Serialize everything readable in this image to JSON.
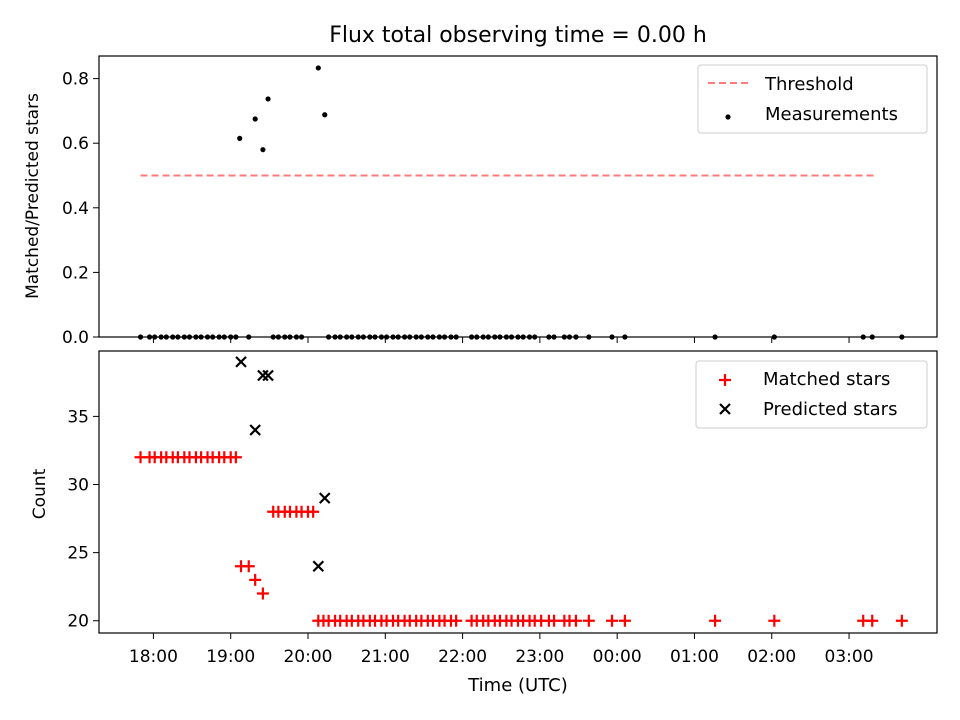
{
  "title": "Flux total observing time = 0.00 h",
  "xlabel": "Time (UTC)",
  "x_ticks": [
    "18:00",
    "19:00",
    "20:00",
    "21:00",
    "22:00",
    "23:00",
    "00:00",
    "01:00",
    "02:00",
    "03:00"
  ],
  "chart_data": [
    {
      "type": "scatter",
      "ylabel": "Matched/Predicted stars",
      "ylim": [
        0,
        0.87
      ],
      "y_ticks": [
        "0.0",
        "0.2",
        "0.4",
        "0.6",
        "0.8"
      ],
      "legend_position": "top-right",
      "threshold": {
        "name": "Threshold",
        "value": 0.5,
        "x_range": [
          "17:50",
          "27:20"
        ],
        "color": "#ff7a7a"
      },
      "series": [
        {
          "name": "Measurements",
          "color": "#000000",
          "points": [
            {
              "x": "19:07",
              "y": 0.615
            },
            {
              "x": "19:19",
              "y": 0.675
            },
            {
              "x": "19:25",
              "y": 0.58
            },
            {
              "x": "19:29",
              "y": 0.737
            },
            {
              "x": "20:08",
              "y": 0.833
            },
            {
              "x": "20:13",
              "y": 0.688
            }
          ],
          "zero_times": [
            "17:50",
            "17:57",
            "18:01",
            "18:06",
            "18:10",
            "18:15",
            "18:19",
            "18:24",
            "18:28",
            "18:33",
            "18:37",
            "18:42",
            "18:46",
            "18:51",
            "18:55",
            "19:00",
            "19:04",
            "19:14",
            "19:33",
            "19:37",
            "19:42",
            "19:46",
            "19:51",
            "19:55",
            "20:16",
            "20:21",
            "20:25",
            "20:30",
            "20:34",
            "20:39",
            "20:43",
            "20:48",
            "20:52",
            "20:57",
            "21:01",
            "21:06",
            "21:10",
            "21:15",
            "21:19",
            "21:24",
            "21:28",
            "21:33",
            "21:37",
            "21:42",
            "21:46",
            "21:51",
            "21:55",
            "22:07",
            "22:11",
            "22:16",
            "22:20",
            "22:25",
            "22:29",
            "22:34",
            "22:38",
            "22:43",
            "22:47",
            "22:52",
            "22:56",
            "23:07",
            "23:11",
            "23:19",
            "23:23",
            "23:28",
            "23:38",
            "23:56",
            "00:06",
            "01:16",
            "02:02",
            "03:11",
            "03:18",
            "03:41"
          ]
        }
      ]
    },
    {
      "type": "scatter",
      "ylabel": "Count",
      "ylim": [
        19.1,
        39.8
      ],
      "y_ticks": [
        "20",
        "25",
        "30",
        "35"
      ],
      "legend_position": "top-right",
      "series": [
        {
          "name": "Matched stars",
          "marker": "+",
          "color": "#ff0000",
          "points": [
            {
              "x": "17:50",
              "y": 32
            },
            {
              "x": "17:57",
              "y": 32
            },
            {
              "x": "18:01",
              "y": 32
            },
            {
              "x": "18:06",
              "y": 32
            },
            {
              "x": "18:10",
              "y": 32
            },
            {
              "x": "18:15",
              "y": 32
            },
            {
              "x": "18:19",
              "y": 32
            },
            {
              "x": "18:24",
              "y": 32
            },
            {
              "x": "18:28",
              "y": 32
            },
            {
              "x": "18:33",
              "y": 32
            },
            {
              "x": "18:37",
              "y": 32
            },
            {
              "x": "18:42",
              "y": 32
            },
            {
              "x": "18:46",
              "y": 32
            },
            {
              "x": "18:51",
              "y": 32
            },
            {
              "x": "18:55",
              "y": 32
            },
            {
              "x": "19:00",
              "y": 32
            },
            {
              "x": "19:04",
              "y": 32
            },
            {
              "x": "19:08",
              "y": 24
            },
            {
              "x": "19:14",
              "y": 24
            },
            {
              "x": "19:19",
              "y": 23
            },
            {
              "x": "19:25",
              "y": 22
            },
            {
              "x": "19:33",
              "y": 28
            },
            {
              "x": "19:37",
              "y": 28
            },
            {
              "x": "19:42",
              "y": 28
            },
            {
              "x": "19:46",
              "y": 28
            },
            {
              "x": "19:51",
              "y": 28
            },
            {
              "x": "19:55",
              "y": 28
            },
            {
              "x": "20:00",
              "y": 28
            },
            {
              "x": "20:04",
              "y": 28
            },
            {
              "x": "20:08",
              "y": 20
            },
            {
              "x": "20:12",
              "y": 20
            },
            {
              "x": "20:16",
              "y": 20
            },
            {
              "x": "20:21",
              "y": 20
            },
            {
              "x": "20:25",
              "y": 20
            },
            {
              "x": "20:30",
              "y": 20
            },
            {
              "x": "20:34",
              "y": 20
            },
            {
              "x": "20:39",
              "y": 20
            },
            {
              "x": "20:43",
              "y": 20
            },
            {
              "x": "20:48",
              "y": 20
            },
            {
              "x": "20:52",
              "y": 20
            },
            {
              "x": "20:57",
              "y": 20
            },
            {
              "x": "21:01",
              "y": 20
            },
            {
              "x": "21:06",
              "y": 20
            },
            {
              "x": "21:10",
              "y": 20
            },
            {
              "x": "21:15",
              "y": 20
            },
            {
              "x": "21:19",
              "y": 20
            },
            {
              "x": "21:24",
              "y": 20
            },
            {
              "x": "21:28",
              "y": 20
            },
            {
              "x": "21:33",
              "y": 20
            },
            {
              "x": "21:37",
              "y": 20
            },
            {
              "x": "21:42",
              "y": 20
            },
            {
              "x": "21:46",
              "y": 20
            },
            {
              "x": "21:51",
              "y": 20
            },
            {
              "x": "21:55",
              "y": 20
            },
            {
              "x": "22:07",
              "y": 20
            },
            {
              "x": "22:11",
              "y": 20
            },
            {
              "x": "22:16",
              "y": 20
            },
            {
              "x": "22:20",
              "y": 20
            },
            {
              "x": "22:25",
              "y": 20
            },
            {
              "x": "22:29",
              "y": 20
            },
            {
              "x": "22:34",
              "y": 20
            },
            {
              "x": "22:38",
              "y": 20
            },
            {
              "x": "22:43",
              "y": 20
            },
            {
              "x": "22:47",
              "y": 20
            },
            {
              "x": "22:52",
              "y": 20
            },
            {
              "x": "22:56",
              "y": 20
            },
            {
              "x": "23:01",
              "y": 20
            },
            {
              "x": "23:07",
              "y": 20
            },
            {
              "x": "23:11",
              "y": 20
            },
            {
              "x": "23:19",
              "y": 20
            },
            {
              "x": "23:23",
              "y": 20
            },
            {
              "x": "23:28",
              "y": 20
            },
            {
              "x": "23:38",
              "y": 20
            },
            {
              "x": "23:56",
              "y": 20
            },
            {
              "x": "00:06",
              "y": 20
            },
            {
              "x": "01:16",
              "y": 20
            },
            {
              "x": "02:02",
              "y": 20
            },
            {
              "x": "03:11",
              "y": 20
            },
            {
              "x": "03:18",
              "y": 20
            },
            {
              "x": "03:41",
              "y": 20
            }
          ]
        },
        {
          "name": "Predicted stars",
          "marker": "x",
          "color": "#000000",
          "points": [
            {
              "x": "19:08",
              "y": 39
            },
            {
              "x": "19:19",
              "y": 34
            },
            {
              "x": "19:25",
              "y": 38
            },
            {
              "x": "19:29",
              "y": 38
            },
            {
              "x": "20:08",
              "y": 24
            },
            {
              "x": "20:13",
              "y": 29
            }
          ]
        }
      ]
    }
  ]
}
